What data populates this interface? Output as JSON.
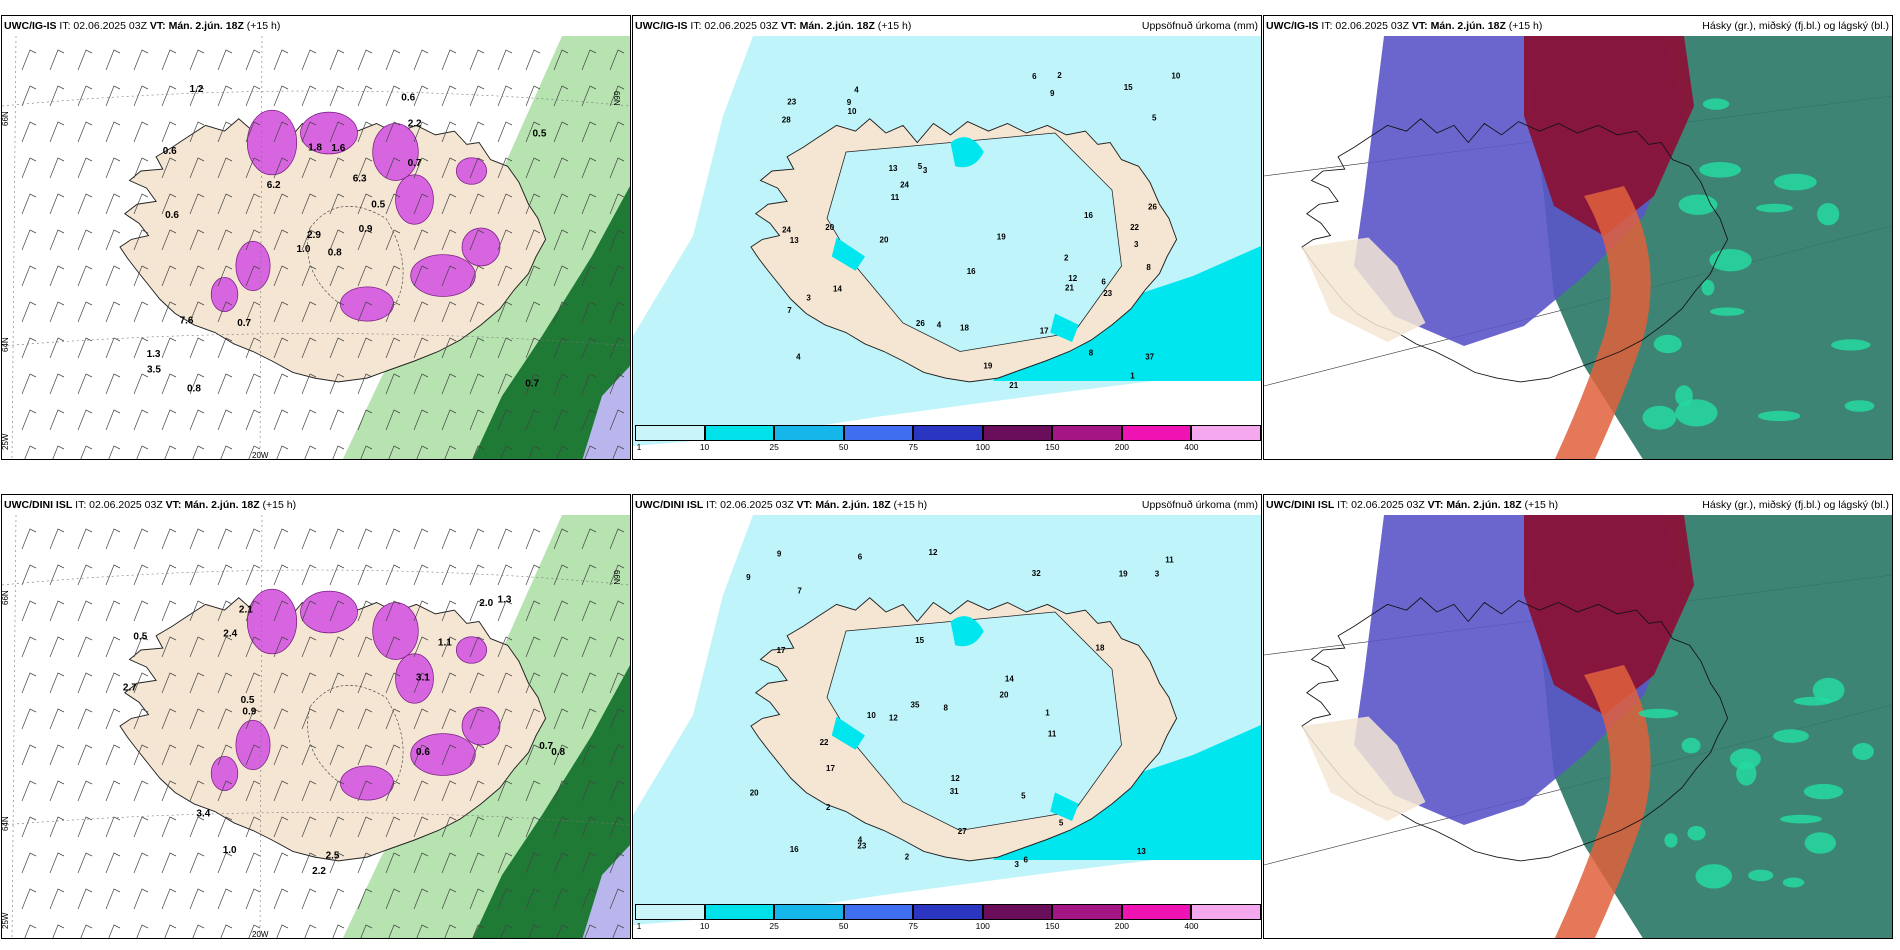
{
  "panels": [
    {
      "model": "UWC/IG-IS",
      "it": "IT: 02.06.2025 03Z",
      "vt_label": "VT:",
      "vt": "Mán. 2.jún. 18Z",
      "lead": "(+15 h)",
      "title": ""
    },
    {
      "model": "UWC/IG-IS",
      "it": "IT: 02.06.2025 03Z",
      "vt_label": "VT:",
      "vt": "Mán. 2.jún. 18Z",
      "lead": "(+15 h)",
      "title": "Uppsöfnuð úrkoma (mm)"
    },
    {
      "model": "UWC/IG-IS",
      "it": "IT: 02.06.2025 03Z",
      "vt_label": "VT:",
      "vt": "Mán. 2.jún. 18Z",
      "lead": "(+15 h)",
      "title": "Hásky (gr.), miðský (fj.bl.) og lágský (bl.)"
    },
    {
      "model": "UWC/DINI ISL",
      "it": "IT: 02.06.2025 03Z",
      "vt_label": "VT:",
      "vt": "Mán. 2.jún. 18Z",
      "lead": "(+15 h)",
      "title": ""
    },
    {
      "model": "UWC/DINI ISL",
      "it": "IT: 02.06.2025 03Z",
      "vt_label": "VT:",
      "vt": "Mán. 2.jún. 18Z",
      "lead": "(+15 h)",
      "title": "Uppsöfnuð úrkoma (mm)"
    },
    {
      "model": "UWC/DINI ISL",
      "it": "IT: 02.06.2025 03Z",
      "vt_label": "VT:",
      "vt": "Mán. 2.jún. 18Z",
      "lead": "(+15 h)",
      "title": "Hásky (gr.), miðský (fj.bl.) og lágský (bl.)"
    }
  ],
  "grid_labels": {
    "lat66": "66N",
    "lat64": "64N",
    "lon25": "25W",
    "lon20": "20W",
    "lon15": "15W"
  },
  "legend": {
    "labels": [
      "1",
      "10",
      "25",
      "50",
      "75",
      "100",
      "150",
      "200",
      "400"
    ],
    "colors": [
      "#c8f4fa",
      "#00e1ea",
      "#17b6ea",
      "#3f6ff0",
      "#2a35c2",
      "#6a0d5a",
      "#a51685",
      "#f013b4",
      "#f6a8ee"
    ]
  },
  "precip_top": [
    "2",
    "3",
    "4",
    "4",
    "3",
    "8",
    "7",
    "9",
    "13",
    "21",
    "28",
    "24",
    "23",
    "37",
    "26",
    "26",
    "16",
    "19",
    "5",
    "14",
    "10",
    "15",
    "11",
    "8",
    "6",
    "9",
    "12",
    "13",
    "10",
    "16",
    "19",
    "17",
    "24",
    "20",
    "22",
    "23",
    "21",
    "20",
    "18",
    "3",
    "5",
    "2",
    "1",
    "4",
    "6"
  ],
  "precip_bottom": [
    "2",
    "3",
    "4",
    "5",
    "6",
    "7",
    "10",
    "13",
    "12",
    "15",
    "19",
    "27",
    "35",
    "31",
    "32",
    "20",
    "17",
    "23",
    "12",
    "9",
    "5",
    "11",
    "14",
    "16",
    "18",
    "22",
    "20",
    "17",
    "9",
    "11",
    "8",
    "6",
    "12",
    "3",
    "2",
    "1"
  ],
  "wind_top": [
    "0.8",
    "0.6",
    "2.9",
    "1.3",
    "0.5",
    "0.7",
    "0.6",
    "1.6",
    "2.2",
    "0.9",
    "1.2",
    "0.7",
    "0.6",
    "0.5",
    "1.0",
    "0.7",
    "0.8",
    "1.8",
    "6.3",
    "7.6",
    "6.2",
    "3.5"
  ],
  "wind_bottom": [
    "0.5",
    "2.4",
    "3.1",
    "2.5",
    "2.0",
    "2.2",
    "0.6",
    "0.9",
    "1.3",
    "0.8",
    "0.7",
    "2.1",
    "1.1",
    "3.4",
    "2.7",
    "1.0",
    "0.5"
  ],
  "colors": {
    "land": "#f5e6d3",
    "ocean": "#ffffff",
    "precip_light": "#bef4fa",
    "precip_med": "#00e6ee",
    "magenta": "#d865e0",
    "green_dark": "#1f7a36",
    "green_light": "#b6e3b0",
    "high_red": "#8a1338",
    "mid_blue": "#5a55c8",
    "low_teal": "#2c7a68"
  }
}
